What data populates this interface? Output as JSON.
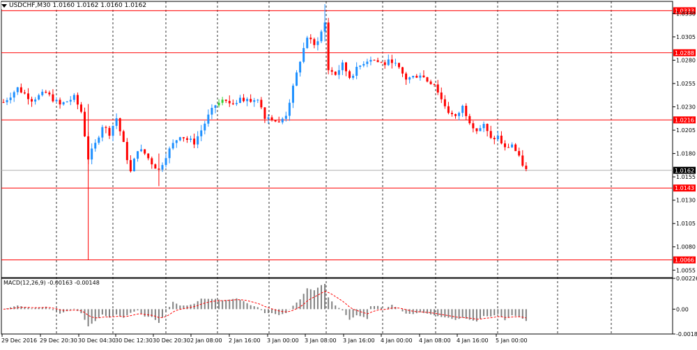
{
  "header": {
    "symbol_label": "USDCHF,M30",
    "ohlc_label": "1.0160 1.0162 1.0160 1.0162"
  },
  "macd": {
    "label": "MACD(12,26,9) -0.00163 -0.00148",
    "axis_labels": [
      "0.00226",
      "0.00",
      "-0.00182"
    ],
    "colors": {
      "histogram": "#808080",
      "signal": "#ff0000"
    }
  },
  "colors": {
    "bull": "#1e90ff",
    "bear": "#ff0000",
    "neutral_bull": "#32cd32",
    "level_line": "#ff0000",
    "current_line": "#b0b0b0",
    "grid": "#000000"
  },
  "chart_data": {
    "type": "candlestick",
    "symbol": "USDCHF",
    "timeframe": "M30",
    "y_ticks": [
      "1.0330",
      "1.0305",
      "1.0280",
      "1.0255",
      "1.0230",
      "1.0205",
      "1.0180",
      "1.0155",
      "1.0130",
      "1.0105",
      "1.0080",
      "1.0055"
    ],
    "ylim": [
      1.0047,
      1.0343
    ],
    "levels": [
      {
        "value": 1.0333,
        "label": "1.0333"
      },
      {
        "value": 1.0288,
        "label": "1.0288"
      },
      {
        "value": 1.0216,
        "label": "1.0216"
      },
      {
        "value": 1.0143,
        "label": "1.0143"
      },
      {
        "value": 1.0066,
        "label": "1.0066"
      }
    ],
    "current_price": {
      "value": 1.0162,
      "label": "1.0162"
    },
    "x_labels": [
      "29 Dec 2016",
      "29 Dec 20:30",
      "30 Dec 04:30",
      "30 Dec 12:30",
      "30 Dec 20:30",
      "2 Jan 08:00",
      "2 Jan 16:00",
      "3 Jan 00:00",
      "3 Jan 08:00",
      "3 Jan 16:00",
      "4 Jan 00:00",
      "4 Jan 08:00",
      "4 Jan 16:00",
      "5 Jan 00:00"
    ],
    "day_separators": [
      "29 Dec 20:30",
      "30 Dec 20:30",
      "2 Jan 08:00",
      "3 Jan 00:00",
      "3 Jan 16:00",
      "4 Jan 00:00",
      "4 Jan 16:00",
      "5 Jan 00:00"
    ],
    "price_path": [
      [
        0,
        1.0235
      ],
      [
        4,
        1.025
      ],
      [
        8,
        1.0238
      ],
      [
        12,
        1.0245
      ],
      [
        16,
        1.0232
      ],
      [
        20,
        1.024
      ],
      [
        22,
        1.0225
      ],
      [
        24,
        1.0175
      ],
      [
        26,
        1.019
      ],
      [
        28,
        1.021
      ],
      [
        30,
        1.0202
      ],
      [
        32,
        1.0218
      ],
      [
        34,
        1.019
      ],
      [
        36,
        1.016
      ],
      [
        38,
        1.0185
      ],
      [
        40,
        1.018
      ],
      [
        42,
        1.017
      ],
      [
        44,
        1.0162
      ],
      [
        46,
        1.0178
      ],
      [
        48,
        1.019
      ],
      [
        50,
        1.02
      ],
      [
        52,
        1.0195
      ],
      [
        54,
        1.0192
      ],
      [
        56,
        1.0205
      ],
      [
        58,
        1.022
      ],
      [
        60,
        1.0232
      ],
      [
        62,
        1.0236
      ],
      [
        64,
        1.0234
      ],
      [
        66,
        1.0236
      ],
      [
        68,
        1.0238
      ],
      [
        70,
        1.0236
      ],
      [
        72,
        1.024
      ],
      [
        74,
        1.022
      ],
      [
        76,
        1.0218
      ],
      [
        78,
        1.0212
      ],
      [
        80,
        1.0222
      ],
      [
        82,
        1.025
      ],
      [
        84,
        1.028
      ],
      [
        86,
        1.0305
      ],
      [
        88,
        1.0295
      ],
      [
        90,
        1.031
      ],
      [
        91,
        1.032
      ],
      [
        92,
        1.027
      ],
      [
        94,
        1.0265
      ],
      [
        96,
        1.0275
      ],
      [
        98,
        1.0262
      ],
      [
        100,
        1.027
      ],
      [
        102,
        1.0278
      ],
      [
        104,
        1.0282
      ],
      [
        106,
        1.0278
      ],
      [
        108,
        1.0276
      ],
      [
        110,
        1.028
      ],
      [
        112,
        1.027
      ],
      [
        114,
        1.026
      ],
      [
        116,
        1.0262
      ],
      [
        118,
        1.0265
      ],
      [
        120,
        1.0258
      ],
      [
        122,
        1.0255
      ],
      [
        124,
        1.0238
      ],
      [
        126,
        1.0225
      ],
      [
        128,
        1.0218
      ],
      [
        130,
        1.023
      ],
      [
        132,
        1.0215
      ],
      [
        134,
        1.0205
      ],
      [
        136,
        1.021
      ],
      [
        138,
        1.0195
      ],
      [
        140,
        1.0198
      ],
      [
        142,
        1.0185
      ],
      [
        144,
        1.019
      ],
      [
        146,
        1.0175
      ],
      [
        148,
        1.0162
      ]
    ],
    "macd_histogram_range": [
      -0.00182,
      0.00226
    ]
  }
}
